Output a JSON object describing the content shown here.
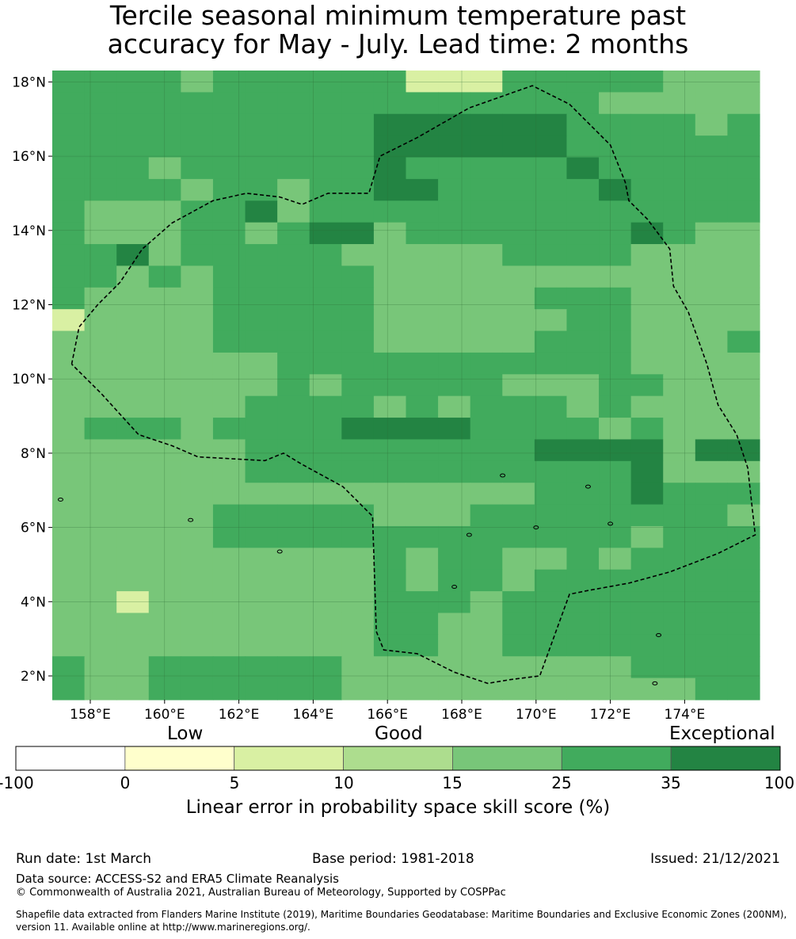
{
  "title": {
    "line1": "Tercile seasonal minimum temperature past",
    "line2": "accuracy for May - July. Lead time: 2 months"
  },
  "map": {
    "lon_range": [
      157.0,
      176.0
    ],
    "lat_range": [
      1.4,
      18.3
    ],
    "lon_ticks": [
      158,
      160,
      162,
      164,
      166,
      168,
      170,
      172,
      174
    ],
    "lon_tick_labels": [
      "158°E",
      "160°E",
      "162°E",
      "164°E",
      "166°E",
      "168°E",
      "170°E",
      "172°E",
      "174°E"
    ],
    "lat_ticks": [
      2,
      4,
      6,
      8,
      10,
      12,
      14,
      16,
      18
    ],
    "lat_tick_labels": [
      "2°N",
      "4°N",
      "6°N",
      "8°N",
      "10°N",
      "12°N",
      "14°N",
      "16°N",
      "18°N"
    ],
    "grid_cell_deg": 0.833,
    "eez_boundary": [
      [
        157.5,
        10.4
      ],
      [
        157.7,
        11.4
      ],
      [
        158.2,
        12.0
      ],
      [
        158.8,
        12.6
      ],
      [
        159.4,
        13.5
      ],
      [
        160.2,
        14.2
      ],
      [
        161.3,
        14.8
      ],
      [
        162.2,
        15.0
      ],
      [
        163.1,
        14.9
      ],
      [
        163.7,
        14.7
      ],
      [
        164.4,
        15.0
      ],
      [
        165.5,
        15.0
      ],
      [
        165.8,
        16.0
      ],
      [
        166.8,
        16.5
      ],
      [
        168.2,
        17.3
      ],
      [
        169.9,
        17.9
      ],
      [
        170.9,
        17.4
      ],
      [
        172.0,
        16.3
      ],
      [
        172.4,
        15.3
      ],
      [
        172.5,
        14.8
      ],
      [
        173.0,
        14.3
      ],
      [
        173.6,
        13.5
      ],
      [
        173.7,
        12.5
      ],
      [
        174.1,
        11.8
      ],
      [
        174.6,
        10.4
      ],
      [
        174.9,
        9.3
      ],
      [
        175.4,
        8.5
      ],
      [
        175.7,
        7.6
      ],
      [
        175.8,
        6.7
      ],
      [
        175.9,
        5.8
      ],
      [
        174.9,
        5.3
      ],
      [
        173.6,
        4.8
      ],
      [
        172.5,
        4.5
      ],
      [
        171.4,
        4.3
      ],
      [
        170.9,
        4.2
      ],
      [
        170.1,
        2.0
      ],
      [
        169.3,
        1.9
      ],
      [
        168.7,
        1.8
      ],
      [
        167.8,
        2.1
      ],
      [
        166.8,
        2.6
      ],
      [
        165.9,
        2.7
      ],
      [
        165.7,
        3.2
      ],
      [
        165.6,
        6.3
      ],
      [
        164.8,
        7.1
      ],
      [
        163.7,
        7.7
      ],
      [
        163.2,
        8.0
      ],
      [
        162.7,
        7.8
      ],
      [
        161.8,
        7.85
      ],
      [
        160.9,
        7.9
      ],
      [
        160.2,
        8.2
      ],
      [
        159.3,
        8.5
      ],
      [
        158.3,
        9.6
      ],
      [
        157.5,
        10.4
      ]
    ],
    "cell_values": [
      "2222122222200022222111",
      "2222222222222222211111",
      "2222222222333333222212",
      "2222222222333333222222",
      "2221222222322222322222",
      "2222122122332222232222",
      "2111223122222222222222",
      "2111221233122222223211",
      "2231222221111122221111",
      "2212122222111111111111",
      "2111122222111112221111",
      "0111122222111111221111",
      "1111122222111112221112",
      "1111111222222222221111",
      "1111111212222211122111",
      "1111112222121222121111",
      "1222122223333222212111",
      "1111112222222223333133",
      "1111112222222222223111",
      "1111111111111112223222",
      "1111122222111222222221",
      "1111122222222222221222",
      "1111111111212211212222",
      "1111111111212212222222",
      "1101111111222122222222",
      "1111111111221122222222",
      "1111111111221122222222",
      "2112222221111111112222",
      "2112222221111111111122"
    ]
  },
  "colorbar": {
    "category_labels": [
      "Low",
      "Good",
      "Exceptional"
    ],
    "boundaries": [
      "-100",
      "0",
      "5",
      "10",
      "15",
      "25",
      "35",
      "100"
    ],
    "colors": [
      "#ffffff",
      "#ffffcc",
      "#d9f0a3",
      "#addd8e",
      "#78c679",
      "#41ab5d",
      "#238443"
    ],
    "label": "Linear error in probability space skill score (%)"
  },
  "footer": {
    "run_date": "Run date: 1st March",
    "base_period": "Base period: 1981-2018",
    "issued": "Issued: 21/12/2021",
    "data_source": "Data source: ACCESS-S2 and ERA5 Climate Reanalysis",
    "copyright": "© Commonwealth of Australia 2021, Australian Bureau of Meteorology, Supported by COSPPac",
    "shapefile_line1": "Shapefile data extracted from Flanders Marine Institute (2019), Maritime Boundaries Geodatabase: Maritime Boundaries and Exclusive Economic Zones (200NM),",
    "shapefile_line2": "version 11. Available online at http://www.marineregions.org/."
  }
}
